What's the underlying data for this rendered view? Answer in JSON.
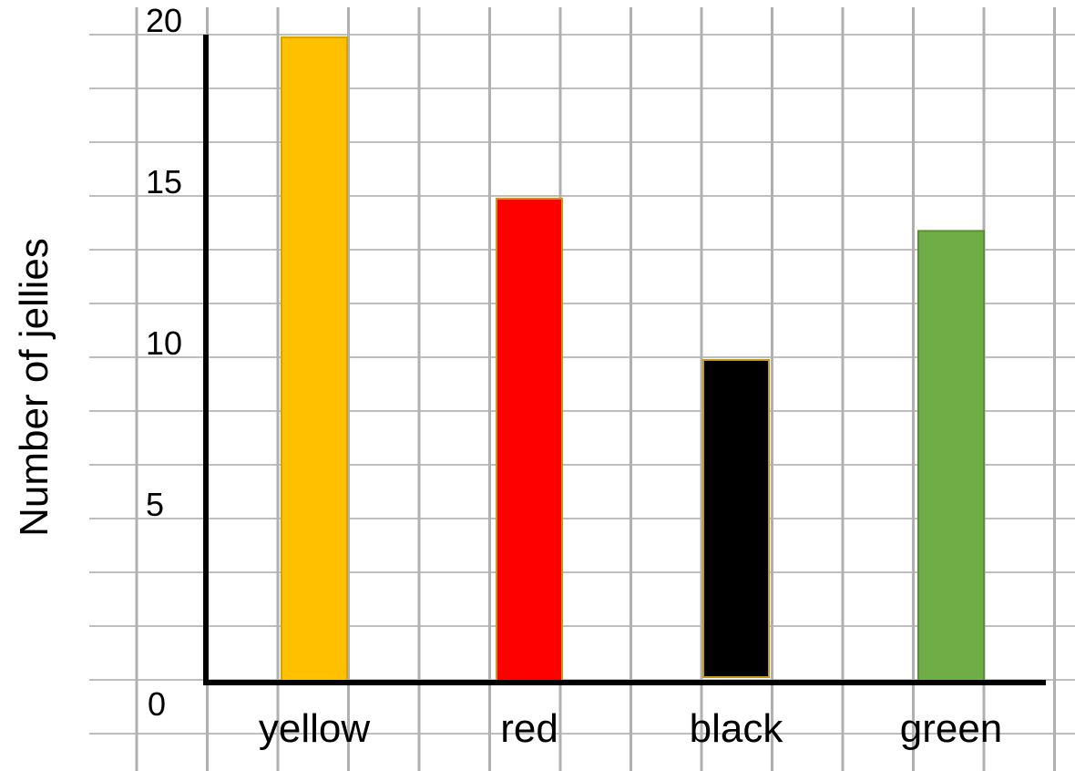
{
  "chart_data": {
    "type": "bar",
    "title": "",
    "xlabel": "",
    "ylabel": "Number of jellies",
    "categories": [
      "yellow",
      "red",
      "black",
      "green"
    ],
    "values": [
      20,
      15,
      10,
      14
    ],
    "colors": [
      "#FFC000",
      "#FF0000",
      "#000000",
      "#70AD47"
    ],
    "border_colors": [
      "#D6A300",
      "#C8961A",
      "#C8961A",
      "#5A8F38"
    ],
    "y_ticks": [
      "0",
      "5",
      "10",
      "15",
      "20"
    ],
    "ylim": [
      0,
      22
    ],
    "grid": true,
    "legend": "none"
  }
}
